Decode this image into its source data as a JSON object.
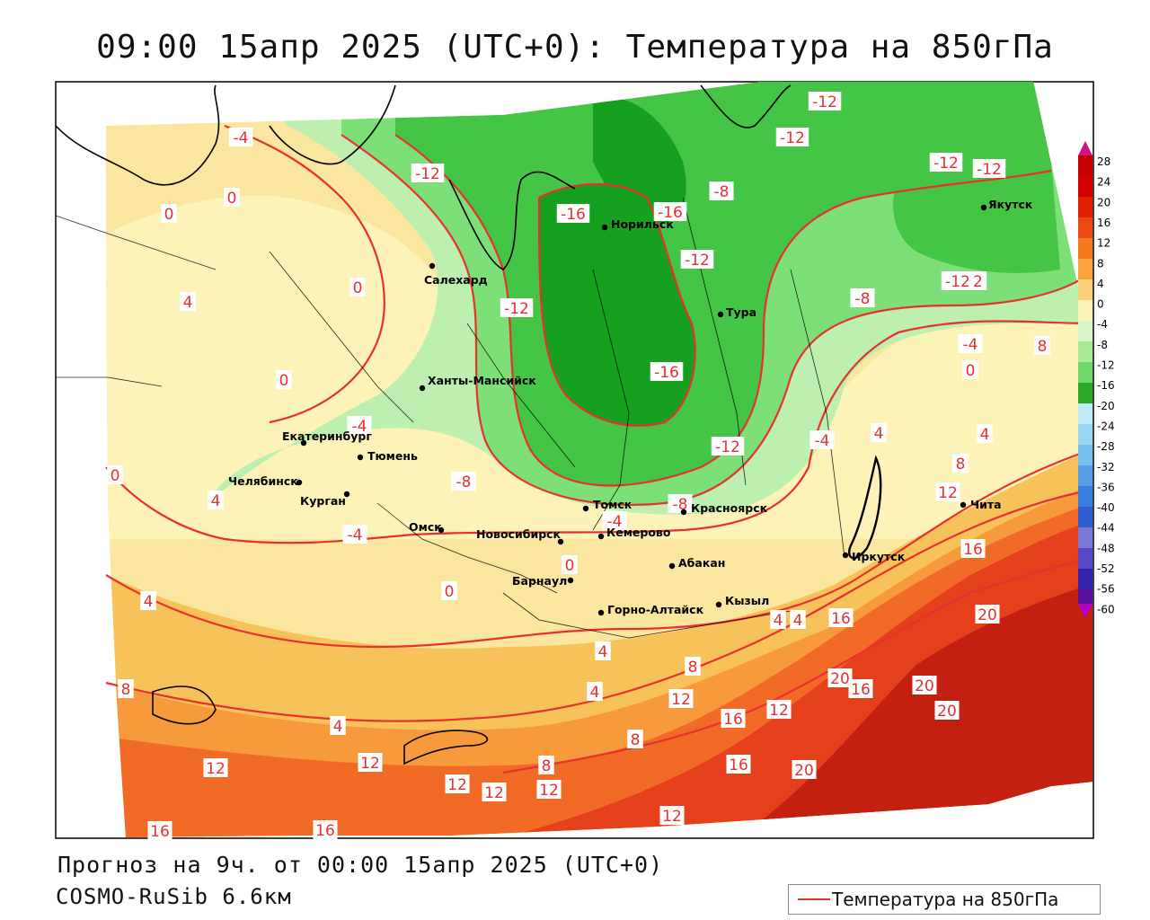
{
  "title": "09:00 15апр 2025 (UTC+0): Температура на 850гПа",
  "forecast_line": "Прогноз на 9ч. от 00:00 15апр 2025 (UTC+0)",
  "model_line": "COSMO-RuSib 6.6км",
  "legend_label": "Температура на 850гПа",
  "colorbar": {
    "ticks": [
      "28",
      "24",
      "20",
      "16",
      "12",
      "8",
      "4",
      "0",
      "-4",
      "-8",
      "-12",
      "-16",
      "-20",
      "-24",
      "-28",
      "-32",
      "-36",
      "-40",
      "-44",
      "-48",
      "-52",
      "-56",
      "-60"
    ]
  },
  "cities": [
    {
      "name": "Якутск"
    },
    {
      "name": "Норильск"
    },
    {
      "name": "Салехард"
    },
    {
      "name": "Тура"
    },
    {
      "name": "Ханты-Мансийск"
    },
    {
      "name": "Екатеринбург"
    },
    {
      "name": "Тюмень"
    },
    {
      "name": "Челябинск"
    },
    {
      "name": "Курган"
    },
    {
      "name": "Омск"
    },
    {
      "name": "Новосибирск"
    },
    {
      "name": "Томск"
    },
    {
      "name": "Кемерово"
    },
    {
      "name": "Красноярск"
    },
    {
      "name": "Абакан"
    },
    {
      "name": "Барнаул"
    },
    {
      "name": "Горно-Алтайск"
    },
    {
      "name": "Кызыл"
    },
    {
      "name": "Иркутск"
    },
    {
      "name": "Чита"
    }
  ],
  "contour_labels": [
    "-4",
    "0",
    "-12",
    "-16",
    "-16",
    "-12",
    "-12",
    "-8",
    "-12",
    "-12",
    "-12",
    "-12",
    "0",
    "4",
    "0",
    "-12",
    "-12",
    "-8",
    "-4",
    "0",
    "8",
    "0",
    "-4",
    "-16",
    "-12",
    "-4",
    "4",
    "4",
    "-8",
    "-8",
    "-4",
    "-4",
    "8",
    "12",
    "4",
    "0",
    "0",
    "0",
    "4",
    "16",
    "8",
    "16",
    "4",
    "4",
    "20",
    "8",
    "20",
    "16",
    "20",
    "20",
    "12",
    "4",
    "12",
    "16",
    "12",
    "8",
    "12",
    "16",
    "20",
    "8",
    "4",
    "12",
    "12",
    "12",
    "16",
    "16",
    "12",
    "4"
  ],
  "colors": {
    "contour": "#e83030",
    "city_dot": "#000000",
    "map_border": "#000000"
  }
}
